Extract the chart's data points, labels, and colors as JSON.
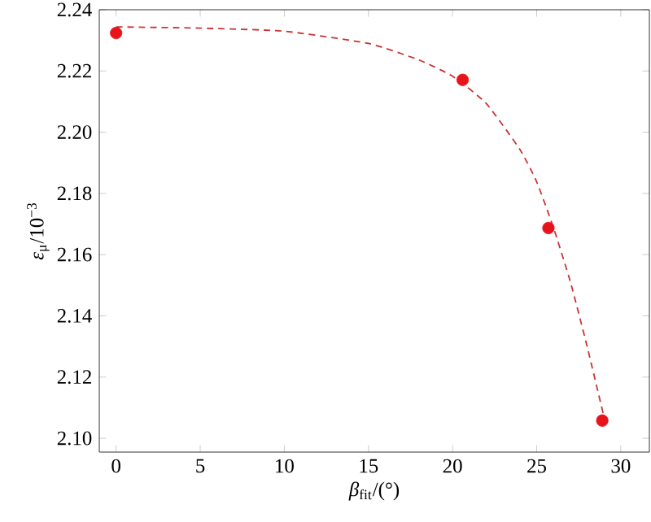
{
  "chart_data": {
    "type": "scatter",
    "xlabel": "*β*$_{fit}$/(°)",
    "ylabel": "*ε*$_{μ}$/10$^{−3}$",
    "xlim": [
      -1,
      31.7
    ],
    "ylim": [
      2.0955,
      2.24
    ],
    "xticks": [
      0,
      5,
      10,
      15,
      20,
      25,
      30
    ],
    "yticks": [
      {
        "value": 2.1,
        "label": "2.10"
      },
      {
        "value": 2.12,
        "label": "2.12"
      },
      {
        "value": 2.14,
        "label": "2.14"
      },
      {
        "value": 2.16,
        "label": "2.16"
      },
      {
        "value": 2.18,
        "label": "2.18"
      },
      {
        "value": 2.2,
        "label": "2.20"
      },
      {
        "value": 2.22,
        "label": "2.22"
      },
      {
        "value": 2.24,
        "label": "2.24"
      }
    ],
    "series": [
      {
        "type": "line",
        "color": "#cc3333",
        "line_style": "dashed",
        "marker": "none",
        "x": [
          0,
          5,
          10,
          15,
          18,
          20,
          22,
          24,
          25,
          26,
          27,
          28,
          29
        ],
        "values": [
          2.2344,
          2.234,
          2.233,
          2.229,
          2.2236,
          2.2183,
          2.2094,
          2.1944,
          2.1838,
          2.1688,
          2.1512,
          2.13,
          2.107
        ]
      },
      {
        "color": "#e8141c",
        "marker": "circle",
        "x": [
          0,
          20.6,
          25.7,
          28.9
        ],
        "values": [
          2.2324,
          2.2171,
          2.1687,
          2.1058
        ]
      }
    ]
  }
}
